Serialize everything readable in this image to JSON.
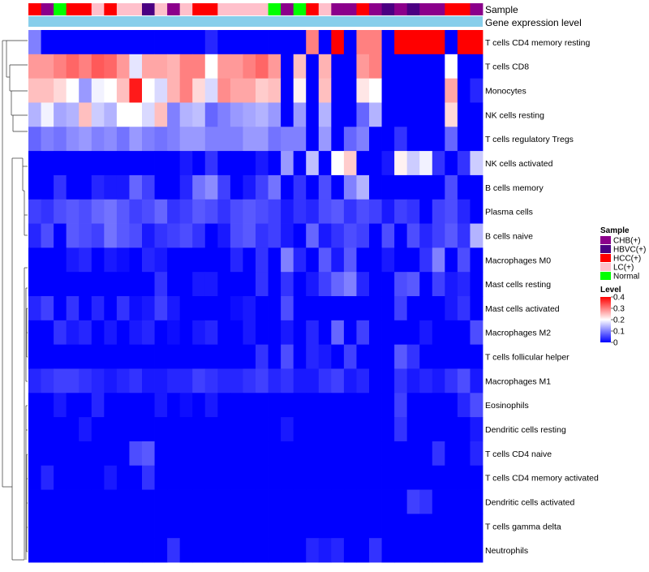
{
  "chart_data": {
    "type": "heatmap",
    "title": "",
    "annotation_tracks": [
      "Sample",
      "Gene expression level"
    ],
    "rows": [
      "T cells CD4 memory resting",
      "T cells CD8",
      "Monocytes",
      "NK cells resting",
      "T cells regulatory  Tregs",
      "NK cells activated",
      "B cells memory",
      "Plasma cells",
      "B cells naive",
      "Macrophages M0",
      "Mast cells resting",
      "Mast cells activated",
      "Macrophages M2",
      "T cells follicular helper",
      "Macrophages M1",
      "Eosinophils",
      "Dendritic cells resting",
      "T cells CD4 naive",
      "T cells CD4 memory activated",
      "Dendritic cells activated",
      "T cells gamma delta",
      "Neutrophils"
    ],
    "sample_groups": [
      "HCC",
      "CHB",
      "Normal",
      "HCC",
      "HCC",
      "LC",
      "HCC",
      "LC",
      "LC",
      "HBVC",
      "LC",
      "CHB",
      "LC",
      "HCC",
      "HCC",
      "LC",
      "LC",
      "LC",
      "LC",
      "Normal",
      "CHB",
      "Normal",
      "HCC",
      "LC",
      "CHB",
      "CHB",
      "HCC",
      "CHB",
      "HBVC",
      "CHB",
      "HBVC",
      "CHB",
      "CHB",
      "HCC",
      "HCC",
      "CHB"
    ],
    "sample_legend": {
      "title": "Sample",
      "items": [
        {
          "label": "CHB(+)",
          "color": "#8B008B"
        },
        {
          "label": "HBVC(+)",
          "color": "#4B0082"
        },
        {
          "label": "HCC(+)",
          "color": "#FF0000"
        },
        {
          "label": "LC(+)",
          "color": "#FFC0CB"
        },
        {
          "label": "Normal",
          "color": "#00FF00"
        }
      ]
    },
    "gene_expression_color": "#87CEEB",
    "color_scale": {
      "title": "Level",
      "min": 0,
      "max": 0.4,
      "ticks": [
        0.4,
        0.3,
        0.2,
        0.1,
        0
      ],
      "tick_labels": [
        "0.4",
        "0.3",
        "0.2",
        "0.1",
        "0"
      ],
      "low_color": "#0000FF",
      "mid_color": "#FFFFFF",
      "high_color": "#FF0000"
    },
    "values": [
      [
        0.1,
        0,
        0,
        0,
        0,
        0,
        0,
        0,
        0,
        0,
        0,
        0,
        0,
        0,
        0.03,
        0,
        0,
        0,
        0,
        0,
        0,
        0,
        0.3,
        0,
        0.4,
        0,
        0.3,
        0.3,
        0,
        0.4,
        0.4,
        0.4,
        0.4,
        0,
        0.4,
        0.4
      ],
      [
        0.28,
        0.28,
        0.3,
        0.32,
        0.3,
        0.33,
        0.32,
        0.28,
        0.18,
        0.27,
        0.27,
        0.26,
        0.3,
        0.3,
        0.2,
        0.28,
        0.28,
        0.3,
        0.32,
        0.28,
        0,
        0.25,
        0,
        0.26,
        0,
        0,
        0.28,
        0.3,
        0,
        0,
        0,
        0,
        0,
        0.2,
        0,
        0
      ],
      [
        0.25,
        0.25,
        0.23,
        0.2,
        0.12,
        0.19,
        0.2,
        0.25,
        0.38,
        0.2,
        0.17,
        0.26,
        0.3,
        0.23,
        0.17,
        0.29,
        0.27,
        0.27,
        0.24,
        0.25,
        0,
        0.21,
        0,
        0.25,
        0,
        0,
        0.22,
        0.2,
        0,
        0,
        0,
        0,
        0,
        0.27,
        0,
        0.03
      ],
      [
        0.14,
        0.19,
        0.13,
        0.14,
        0.25,
        0.16,
        0.14,
        0.2,
        0.2,
        0.17,
        0.25,
        0.1,
        0.14,
        0.15,
        0.08,
        0.1,
        0.12,
        0.13,
        0.14,
        0.12,
        0,
        0.12,
        0,
        0.14,
        0,
        0,
        0.08,
        0.14,
        0,
        0,
        0,
        0,
        0,
        0.23,
        0,
        0
      ],
      [
        0.08,
        0.1,
        0.09,
        0.11,
        0.12,
        0.1,
        0.11,
        0.09,
        0.12,
        0.1,
        0.09,
        0.1,
        0.12,
        0.12,
        0.1,
        0.1,
        0.1,
        0.12,
        0.12,
        0.09,
        0.1,
        0.1,
        0,
        0.12,
        0,
        0.08,
        0.1,
        0,
        0,
        0.04,
        0,
        0,
        0,
        0.08,
        0,
        0
      ],
      [
        0,
        0,
        0,
        0,
        0,
        0,
        0,
        0,
        0,
        0,
        0,
        0,
        0.02,
        0,
        0.04,
        0,
        0,
        0,
        0.02,
        0,
        0.12,
        0,
        0.15,
        0,
        0.2,
        0.24,
        0,
        0,
        0.02,
        0.21,
        0.16,
        0.19,
        0.04,
        0,
        0.04,
        0.16
      ],
      [
        0,
        0,
        0.04,
        0,
        0,
        0.03,
        0.02,
        0.02,
        0.08,
        0.05,
        0,
        0,
        0.03,
        0.09,
        0.11,
        0.05,
        0,
        0.02,
        0.05,
        0.09,
        0,
        0.04,
        0,
        0.06,
        0,
        0.1,
        0.14,
        0,
        0,
        0,
        0,
        0,
        0,
        0.06,
        0,
        0
      ],
      [
        0.05,
        0.04,
        0.06,
        0.07,
        0.06,
        0.08,
        0.09,
        0.07,
        0.05,
        0.06,
        0.08,
        0.04,
        0.05,
        0.07,
        0.06,
        0.04,
        0.06,
        0.07,
        0.06,
        0.05,
        0.02,
        0.04,
        0.03,
        0.06,
        0.07,
        0.04,
        0.06,
        0.05,
        0.02,
        0.05,
        0.04,
        0,
        0.05,
        0.06,
        0.03,
        0
      ],
      [
        0.03,
        0.06,
        0,
        0.07,
        0.06,
        0.05,
        0.09,
        0.07,
        0.06,
        0.02,
        0.04,
        0.05,
        0.06,
        0.04,
        0,
        0.02,
        0.06,
        0.07,
        0.04,
        0.05,
        0.02,
        0,
        0.08,
        0.02,
        0.04,
        0.06,
        0.05,
        0,
        0.06,
        0,
        0.06,
        0.03,
        0.05,
        0.07,
        0.04,
        0.14
      ],
      [
        0,
        0,
        0,
        0.02,
        0.03,
        0,
        0.02,
        0.01,
        0,
        0.03,
        0.02,
        0,
        0,
        0,
        0,
        0,
        0.03,
        0,
        0.04,
        0,
        0.1,
        0.03,
        0,
        0.07,
        0.02,
        0.07,
        0,
        0,
        0.02,
        0,
        0,
        0.04,
        0.1,
        0,
        0.06,
        0
      ],
      [
        0,
        0,
        0,
        0,
        0,
        0,
        0,
        0,
        0,
        0,
        0.04,
        0,
        0,
        0.02,
        0.02,
        0,
        0,
        0,
        0.04,
        0,
        0.04,
        0,
        0.02,
        0.05,
        0.08,
        0.1,
        0.03,
        0,
        0,
        0.06,
        0.07,
        0,
        0.05,
        0.02,
        0.03,
        0
      ],
      [
        0.03,
        0.05,
        0,
        0.04,
        0,
        0.03,
        0,
        0.04,
        0.01,
        0.02,
        0.05,
        0.02,
        0,
        0,
        0,
        0,
        0.01,
        0.02,
        0,
        0,
        0.06,
        0,
        0,
        0,
        0,
        0,
        0,
        0,
        0,
        0.05,
        0,
        0,
        0,
        0.02,
        0.04,
        0
      ],
      [
        0,
        0,
        0.04,
        0.02,
        0.03,
        0,
        0.02,
        0,
        0.02,
        0.03,
        0,
        0.01,
        0,
        0.02,
        0.03,
        0,
        0,
        0.02,
        0,
        0,
        0.02,
        0,
        0.03,
        0,
        0.08,
        0,
        0.05,
        0,
        0,
        0,
        0,
        0.02,
        0,
        0,
        0,
        0.06
      ],
      [
        0,
        0,
        0,
        0,
        0,
        0,
        0,
        0,
        0,
        0,
        0,
        0,
        0,
        0,
        0,
        0,
        0,
        0,
        0.04,
        0,
        0.06,
        0,
        0.03,
        0.02,
        0,
        0.05,
        0,
        0,
        0,
        0.07,
        0.04,
        0,
        0,
        0,
        0,
        0
      ],
      [
        0.03,
        0.04,
        0.05,
        0.05,
        0.04,
        0.03,
        0.02,
        0.03,
        0.04,
        0.02,
        0.02,
        0.03,
        0.03,
        0.05,
        0.04,
        0.03,
        0.03,
        0.04,
        0.05,
        0.03,
        0.04,
        0.02,
        0.02,
        0.04,
        0.05,
        0.02,
        0.03,
        0,
        0,
        0.04,
        0.02,
        0.03,
        0.02,
        0.04,
        0.06,
        0.02
      ],
      [
        0,
        0,
        0.02,
        0,
        0,
        0.03,
        0,
        0,
        0,
        0,
        0.02,
        0,
        0.01,
        0,
        0.02,
        0,
        0,
        0,
        0,
        0,
        0,
        0,
        0,
        0,
        0,
        0,
        0,
        0,
        0,
        0.05,
        0,
        0,
        0,
        0,
        0.03,
        0.06
      ],
      [
        0,
        0,
        0,
        0,
        0.02,
        0,
        0,
        0,
        0,
        0,
        0,
        0,
        0,
        0,
        0,
        0,
        0,
        0,
        0,
        0,
        0.02,
        0,
        0,
        0,
        0,
        0,
        0,
        0,
        0,
        0.04,
        0,
        0,
        0,
        0,
        0,
        0.02
      ],
      [
        0,
        0,
        0,
        0,
        0,
        0,
        0,
        0,
        0.06,
        0.07,
        0,
        0,
        0,
        0,
        0,
        0,
        0,
        0,
        0,
        0,
        0,
        0,
        0,
        0,
        0,
        0,
        0,
        0,
        0,
        0,
        0,
        0,
        0.04,
        0,
        0,
        0.03
      ],
      [
        0,
        0.03,
        0,
        0,
        0,
        0,
        0.02,
        0,
        0,
        0.04,
        0,
        0,
        0,
        0,
        0,
        0,
        0,
        0,
        0,
        0,
        0,
        0,
        0,
        0,
        0,
        0,
        0,
        0,
        0,
        0,
        0,
        0,
        0,
        0,
        0,
        0
      ],
      [
        0,
        0,
        0,
        0,
        0,
        0,
        0,
        0,
        0,
        0,
        0,
        0,
        0,
        0,
        0,
        0,
        0,
        0,
        0,
        0,
        0,
        0,
        0,
        0,
        0,
        0,
        0,
        0,
        0,
        0,
        0.05,
        0.04,
        0,
        0,
        0,
        0
      ],
      [
        0,
        0,
        0,
        0,
        0,
        0,
        0,
        0,
        0,
        0,
        0,
        0,
        0,
        0,
        0,
        0,
        0,
        0,
        0,
        0,
        0,
        0,
        0,
        0,
        0,
        0,
        0,
        0,
        0,
        0,
        0,
        0,
        0,
        0,
        0,
        0
      ],
      [
        0,
        0,
        0,
        0,
        0,
        0,
        0,
        0,
        0,
        0,
        0,
        0.04,
        0,
        0,
        0,
        0,
        0,
        0,
        0,
        0,
        0,
        0,
        0.03,
        0.02,
        0.03,
        0,
        0,
        0.04,
        0,
        0,
        0,
        0,
        0,
        0,
        0,
        0
      ]
    ]
  }
}
